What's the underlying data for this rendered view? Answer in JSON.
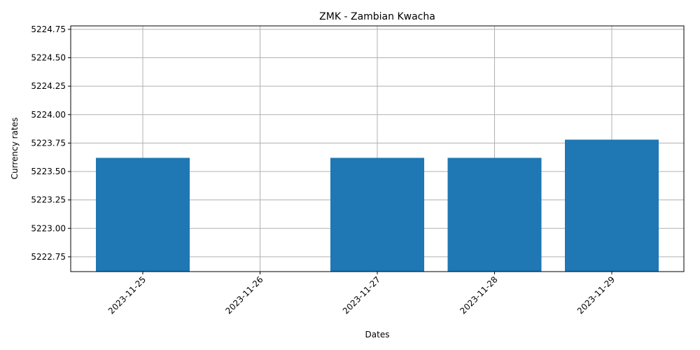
{
  "chart_data": {
    "type": "bar",
    "title": "ZMK - Zambian Kwacha",
    "xlabel": "Dates",
    "ylabel": "Currency rates",
    "categories": [
      "2023-11-25",
      "2023-11-26",
      "2023-11-27",
      "2023-11-28",
      "2023-11-29"
    ],
    "values": [
      5223.62,
      null,
      5223.62,
      5223.62,
      5223.78
    ],
    "ylim": [
      5222.62,
      5224.78
    ],
    "yticks": [
      "5222.75",
      "5223.00",
      "5223.25",
      "5223.50",
      "5223.75",
      "5224.00",
      "5224.25",
      "5224.50",
      "5224.75"
    ],
    "grid": true,
    "bar_color": "#1f77b4",
    "grid_color": "#b0b0b0"
  }
}
